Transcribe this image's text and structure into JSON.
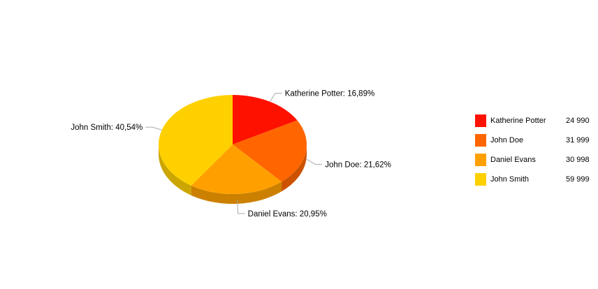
{
  "chart_data": {
    "type": "pie",
    "three_d": true,
    "legend_position": "right",
    "title": "",
    "series": [
      {
        "name": "Katherine Potter",
        "value": 24990,
        "value_label": "24 990",
        "label": "Katherine Potter: 16,89%",
        "color": "#ff1100"
      },
      {
        "name": "John Doe",
        "value": 31999,
        "value_label": "31 999",
        "label": "John Doe: 21,62%",
        "color": "#ff6600"
      },
      {
        "name": "Daniel Evans",
        "value": 30998,
        "value_label": "30 998",
        "label": "Daniel Evans: 20,95%",
        "color": "#ffa000"
      },
      {
        "name": "John Smith",
        "value": 59999,
        "value_label": "59 999",
        "label": "John Smith: 40,54%",
        "color": "#ffd000"
      }
    ]
  }
}
